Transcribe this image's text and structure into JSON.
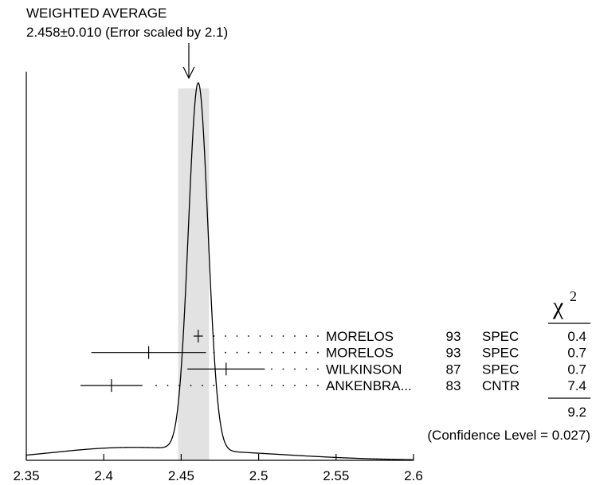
{
  "chart_data": {
    "type": "ideogram",
    "title": "WEIGHTED AVERAGE",
    "subtitle": "2.458±0.010 (Error scaled by 2.1)",
    "weighted_average": {
      "value": 2.458,
      "error": 0.01,
      "scale_factor": 2.1
    },
    "x_ticks": [
      {
        "value": 2.35,
        "label": "2.35"
      },
      {
        "value": 2.4,
        "label": "2.4"
      },
      {
        "value": 2.45,
        "label": "2.45"
      },
      {
        "value": 2.5,
        "label": "2.5"
      },
      {
        "value": 2.55,
        "label": "2.55"
      },
      {
        "value": 2.6,
        "label": "2.6"
      }
    ],
    "xlim": [
      2.35,
      2.6
    ],
    "chi2_header": "χ",
    "chi2_exponent": "2",
    "measurements": [
      {
        "author": "MORELOS",
        "year": "93",
        "technique": "SPEC",
        "chi2": "0.4",
        "value": 2.461,
        "error": 0.003
      },
      {
        "author": "MORELOS",
        "year": "93",
        "technique": "SPEC",
        "chi2": "0.7",
        "value": 2.429,
        "error": 0.037
      },
      {
        "author": "WILKINSON",
        "year": "87",
        "technique": "SPEC",
        "chi2": "0.7",
        "value": 2.479,
        "error": 0.025
      },
      {
        "author": "ANKENBRA...",
        "year": "83",
        "technique": "CNTR",
        "chi2": "7.4",
        "value": 2.405,
        "error": 0.02
      }
    ],
    "chi2_total": "9.2",
    "confidence_level": "(Confidence Level = 0.027)"
  }
}
